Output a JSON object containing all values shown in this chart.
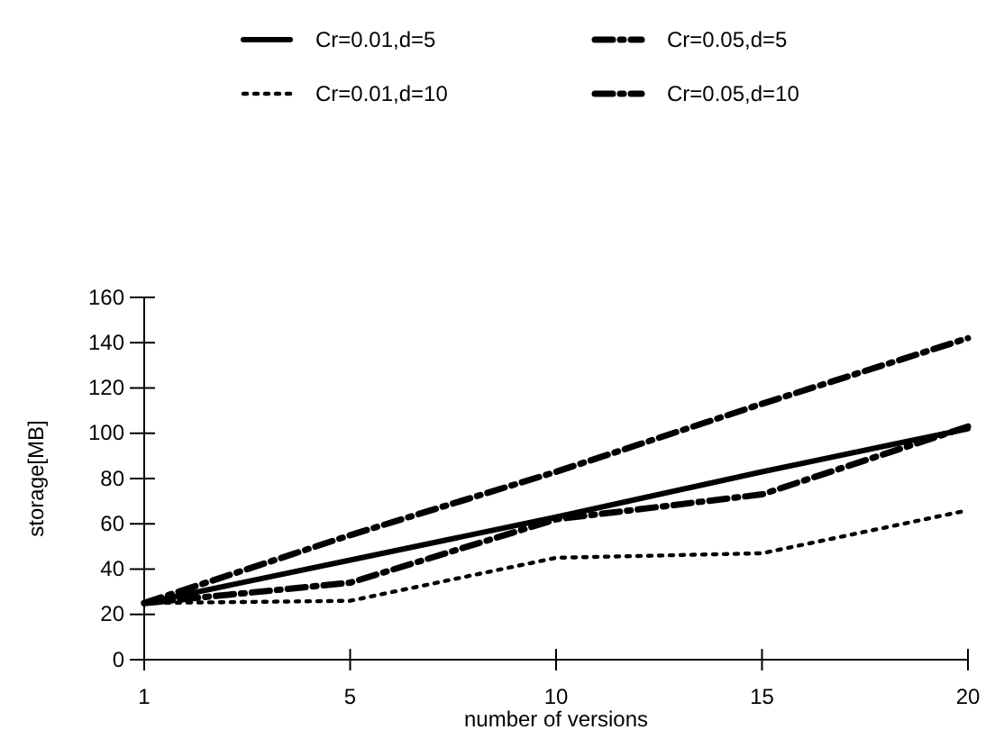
{
  "chart_data": {
    "type": "line",
    "xlabel": "number of versions",
    "ylabel": "storage[MB]",
    "categories": [
      "1",
      "5",
      "10",
      "15",
      "20"
    ],
    "series": [
      {
        "name": "Cr=0.01,d=5",
        "color": "#000000",
        "line_style": "solid",
        "values": [
          25,
          44,
          63,
          83,
          102
        ]
      },
      {
        "name": "Cr=0.05,d=5",
        "color": "#000000",
        "line_style": "dashed",
        "values": [
          25,
          34,
          62,
          73,
          103
        ]
      },
      {
        "name": "Cr=0.01,d=10",
        "color": "#000000",
        "line_style": "dotted",
        "values": [
          25,
          26,
          45,
          47,
          66
        ]
      },
      {
        "name": "Cr=0.05,d=10",
        "color": "#000000",
        "line_style": "dashed",
        "values": [
          25,
          55,
          83,
          113,
          142
        ]
      }
    ],
    "ylim": [
      0,
      160
    ],
    "yticks": [
      0,
      20,
      40,
      60,
      80,
      100,
      120,
      140,
      160
    ],
    "grid": false,
    "legend": "top",
    "marker": "none"
  }
}
